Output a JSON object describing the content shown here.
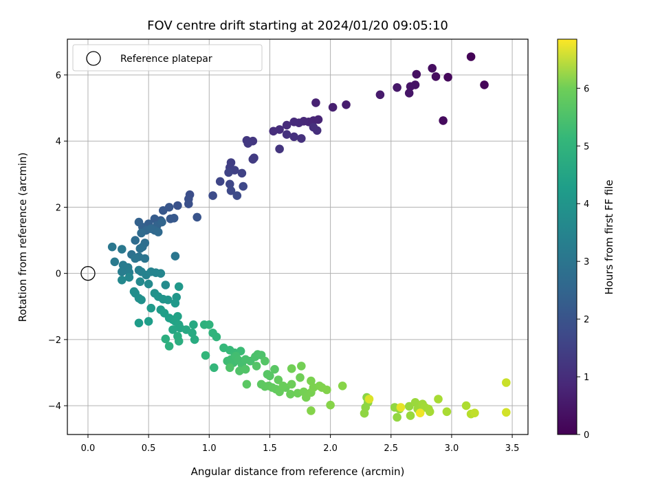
{
  "chart_data": {
    "type": "scatter",
    "title": "FOV centre drift starting at 2024/01/20 09:05:10",
    "xlabel": "Angular distance from reference (arcmin)",
    "ylabel": "Rotation from reference (arcmin)",
    "xlim": [
      -0.17,
      3.63
    ],
    "ylim": [
      -4.87,
      7.08
    ],
    "xticks": [
      0.0,
      0.5,
      1.0,
      1.5,
      2.0,
      2.5,
      3.0,
      3.5
    ],
    "xtick_labels": [
      "0.0",
      "0.5",
      "1.0",
      "1.5",
      "2.0",
      "2.5",
      "3.0",
      "3.5"
    ],
    "yticks": [
      -4,
      -2,
      0,
      2,
      4,
      6
    ],
    "ytick_labels": [
      "−4",
      "−2",
      "0",
      "2",
      "4",
      "6"
    ],
    "grid": true,
    "legend": {
      "position": "top-left",
      "entries": [
        "Reference platepar"
      ]
    },
    "reference_point": {
      "x": 0.0,
      "y": 0.0
    },
    "colorbar": {
      "label": "Hours from first FF file",
      "colormap": "viridis",
      "range": [
        0,
        6.85
      ],
      "ticks": [
        0,
        1,
        2,
        3,
        4,
        5,
        6
      ]
    },
    "points": [
      [
        3.16,
        6.55,
        0.05
      ],
      [
        3.27,
        5.7,
        0.1
      ],
      [
        2.97,
        5.93,
        0.15
      ],
      [
        2.93,
        4.62,
        0.2
      ],
      [
        2.87,
        5.95,
        0.22
      ],
      [
        2.84,
        6.2,
        0.25
      ],
      [
        2.71,
        6.02,
        0.3
      ],
      [
        2.7,
        5.7,
        0.35
      ],
      [
        2.66,
        5.65,
        0.38
      ],
      [
        2.65,
        5.45,
        0.4
      ],
      [
        2.55,
        5.62,
        0.45
      ],
      [
        2.41,
        5.4,
        0.5
      ],
      [
        2.13,
        5.1,
        0.55
      ],
      [
        2.02,
        5.02,
        0.6
      ],
      [
        1.88,
        5.16,
        0.65
      ],
      [
        1.9,
        4.65,
        0.7
      ],
      [
        1.86,
        4.62,
        0.72
      ],
      [
        1.82,
        4.58,
        0.75
      ],
      [
        1.78,
        4.6,
        0.78
      ],
      [
        1.74,
        4.55,
        0.8
      ],
      [
        1.7,
        4.58,
        0.83
      ],
      [
        1.64,
        4.48,
        0.86
      ],
      [
        1.58,
        4.35,
        0.88
      ],
      [
        1.53,
        4.3,
        0.9
      ],
      [
        1.89,
        4.32,
        0.92
      ],
      [
        1.86,
        4.42,
        0.94
      ],
      [
        1.76,
        4.08,
        0.96
      ],
      [
        1.7,
        4.13,
        0.98
      ],
      [
        1.64,
        4.2,
        1.0
      ],
      [
        1.58,
        3.76,
        1.05
      ],
      [
        1.36,
        4.0,
        1.1
      ],
      [
        1.31,
        4.02,
        1.13
      ],
      [
        1.32,
        3.93,
        1.16
      ],
      [
        1.37,
        3.49,
        1.2
      ],
      [
        1.36,
        3.45,
        1.23
      ],
      [
        1.18,
        3.35,
        1.26
      ],
      [
        1.17,
        3.2,
        1.3
      ],
      [
        1.21,
        3.12,
        1.33
      ],
      [
        1.27,
        3.03,
        1.36
      ],
      [
        1.16,
        3.05,
        1.4
      ],
      [
        1.09,
        2.78,
        1.45
      ],
      [
        1.17,
        2.7,
        1.48
      ],
      [
        1.28,
        2.63,
        1.5
      ],
      [
        1.18,
        2.5,
        1.53
      ],
      [
        1.23,
        2.35,
        1.56
      ],
      [
        1.03,
        2.35,
        1.6
      ],
      [
        0.84,
        2.38,
        1.65
      ],
      [
        0.83,
        2.25,
        1.68
      ],
      [
        0.83,
        2.1,
        1.7
      ],
      [
        0.74,
        2.05,
        1.75
      ],
      [
        0.9,
        1.7,
        1.8
      ],
      [
        0.67,
        2.0,
        1.83
      ],
      [
        0.62,
        1.9,
        1.86
      ],
      [
        0.68,
        1.65,
        1.9
      ],
      [
        0.71,
        1.67,
        1.92
      ],
      [
        0.6,
        1.6,
        1.95
      ],
      [
        0.55,
        1.65,
        2.0
      ],
      [
        0.5,
        1.5,
        2.05
      ],
      [
        0.45,
        1.4,
        2.1
      ],
      [
        0.42,
        1.55,
        2.13
      ],
      [
        0.57,
        1.45,
        2.16
      ],
      [
        0.61,
        1.55,
        2.2
      ],
      [
        0.48,
        1.3,
        2.25
      ],
      [
        0.55,
        1.3,
        2.28
      ],
      [
        0.52,
        1.35,
        2.3
      ],
      [
        0.58,
        1.25,
        2.33
      ],
      [
        0.44,
        1.22,
        2.36
      ],
      [
        0.39,
        1.0,
        2.4
      ],
      [
        0.47,
        0.92,
        2.45
      ],
      [
        0.45,
        0.8,
        2.5
      ],
      [
        0.43,
        0.75,
        2.53
      ],
      [
        0.36,
        0.57,
        2.56
      ],
      [
        0.42,
        0.5,
        2.6
      ],
      [
        0.47,
        0.45,
        2.63
      ],
      [
        0.39,
        0.45,
        2.66
      ],
      [
        0.72,
        0.52,
        2.7
      ],
      [
        0.2,
        0.8,
        2.73
      ],
      [
        0.28,
        0.73,
        2.76
      ],
      [
        0.22,
        0.35,
        2.8
      ],
      [
        0.29,
        0.25,
        2.83
      ],
      [
        0.33,
        0.18,
        2.86
      ],
      [
        0.28,
        0.05,
        2.9
      ],
      [
        0.34,
        0.03,
        2.93
      ],
      [
        0.42,
        0.1,
        2.96
      ],
      [
        0.44,
        0.05,
        3.0
      ],
      [
        0.48,
        -0.05,
        3.03
      ],
      [
        0.52,
        0.05,
        3.06
      ],
      [
        0.56,
        0.02,
        3.1
      ],
      [
        0.6,
        0.0,
        3.13
      ],
      [
        0.34,
        -0.12,
        3.16
      ],
      [
        0.28,
        -0.2,
        3.2
      ],
      [
        0.43,
        -0.25,
        3.23
      ],
      [
        0.5,
        -0.32,
        3.26
      ],
      [
        0.64,
        -0.35,
        3.3
      ],
      [
        0.38,
        -0.55,
        3.33
      ],
      [
        0.39,
        -0.6,
        3.36
      ],
      [
        0.42,
        -0.75,
        3.4
      ],
      [
        0.44,
        -0.8,
        3.43
      ],
      [
        0.55,
        -0.6,
        3.46
      ],
      [
        0.58,
        -0.7,
        3.5
      ],
      [
        0.62,
        -0.78,
        3.53
      ],
      [
        0.66,
        -0.8,
        3.56
      ],
      [
        0.73,
        -0.72,
        3.6
      ],
      [
        0.75,
        -0.4,
        3.63
      ],
      [
        0.72,
        -0.9,
        3.66
      ],
      [
        0.52,
        -1.05,
        3.7
      ],
      [
        0.6,
        -1.1,
        3.73
      ],
      [
        0.42,
        -1.5,
        3.76
      ],
      [
        0.5,
        -1.45,
        3.8
      ],
      [
        0.63,
        -1.2,
        3.83
      ],
      [
        0.67,
        -1.35,
        3.86
      ],
      [
        0.7,
        -1.4,
        3.9
      ],
      [
        0.74,
        -1.3,
        3.93
      ],
      [
        0.72,
        -1.45,
        3.96
      ],
      [
        0.75,
        -1.55,
        4.0
      ],
      [
        0.76,
        -1.65,
        4.03
      ],
      [
        0.7,
        -1.7,
        4.06
      ],
      [
        0.81,
        -1.7,
        4.1
      ],
      [
        0.87,
        -1.55,
        4.13
      ],
      [
        0.86,
        -1.8,
        4.16
      ],
      [
        0.88,
        -2.0,
        4.2
      ],
      [
        0.74,
        -1.9,
        4.23
      ],
      [
        0.75,
        -2.05,
        4.26
      ],
      [
        0.64,
        -1.98,
        4.3
      ],
      [
        0.67,
        -2.2,
        4.33
      ],
      [
        0.96,
        -1.55,
        4.36
      ],
      [
        1.0,
        -1.55,
        4.4
      ],
      [
        1.03,
        -1.8,
        4.43
      ],
      [
        1.06,
        -1.92,
        4.46
      ],
      [
        0.97,
        -2.48,
        4.5
      ],
      [
        1.04,
        -2.85,
        4.53
      ],
      [
        1.12,
        -2.25,
        4.56
      ],
      [
        1.17,
        -2.32,
        4.6
      ],
      [
        1.21,
        -2.4,
        4.63
      ],
      [
        1.26,
        -2.35,
        4.66
      ],
      [
        1.15,
        -2.65,
        4.7
      ],
      [
        1.18,
        -2.6,
        4.72
      ],
      [
        1.2,
        -2.7,
        4.74
      ],
      [
        1.22,
        -2.5,
        4.76
      ],
      [
        1.24,
        -2.62,
        4.78
      ],
      [
        1.27,
        -2.75,
        4.8
      ],
      [
        1.3,
        -2.6,
        4.82
      ],
      [
        1.34,
        -2.65,
        4.84
      ],
      [
        1.38,
        -2.52,
        4.86
      ],
      [
        1.4,
        -2.45,
        4.88
      ],
      [
        1.43,
        -2.47,
        4.9
      ],
      [
        1.17,
        -2.85,
        4.92
      ],
      [
        1.25,
        -2.95,
        4.94
      ],
      [
        1.3,
        -2.9,
        4.96
      ],
      [
        1.39,
        -2.8,
        4.98
      ],
      [
        1.46,
        -2.65,
        5.0
      ],
      [
        1.48,
        -3.05,
        5.02
      ],
      [
        1.5,
        -3.1,
        5.04
      ],
      [
        1.54,
        -2.9,
        5.06
      ],
      [
        1.31,
        -3.35,
        5.08
      ],
      [
        1.43,
        -3.35,
        5.1
      ],
      [
        1.46,
        -3.42,
        5.12
      ],
      [
        1.49,
        -3.4,
        5.14
      ],
      [
        1.52,
        -3.45,
        5.16
      ],
      [
        1.55,
        -3.5,
        5.18
      ],
      [
        1.57,
        -3.22,
        5.2
      ],
      [
        1.58,
        -3.58,
        5.22
      ],
      [
        1.63,
        -3.45,
        5.24
      ],
      [
        1.61,
        -3.4,
        5.26
      ],
      [
        1.67,
        -3.65,
        5.28
      ],
      [
        1.68,
        -3.35,
        5.3
      ],
      [
        1.73,
        -3.62,
        5.32
      ],
      [
        1.75,
        -3.15,
        5.34
      ],
      [
        1.68,
        -2.88,
        5.36
      ],
      [
        1.76,
        -2.8,
        5.38
      ],
      [
        1.78,
        -3.58,
        5.4
      ],
      [
        1.8,
        -3.75,
        5.42
      ],
      [
        1.84,
        -3.6,
        5.44
      ],
      [
        1.84,
        -3.25,
        5.46
      ],
      [
        1.86,
        -3.45,
        5.48
      ],
      [
        1.91,
        -3.4,
        5.5
      ],
      [
        1.93,
        -3.45,
        5.52
      ],
      [
        1.97,
        -3.52,
        5.54
      ],
      [
        1.84,
        -4.15,
        5.56
      ],
      [
        2.0,
        -3.98,
        5.58
      ],
      [
        2.1,
        -3.4,
        5.6
      ],
      [
        2.3,
        -3.75,
        5.62
      ],
      [
        2.31,
        -3.9,
        5.64
      ],
      [
        2.29,
        -4.05,
        5.66
      ],
      [
        2.28,
        -4.23,
        5.68
      ],
      [
        2.53,
        -4.05,
        5.7
      ],
      [
        2.55,
        -4.35,
        5.72
      ],
      [
        2.57,
        -4.1,
        5.74
      ],
      [
        2.65,
        -4.02,
        5.76
      ],
      [
        2.66,
        -4.3,
        5.78
      ],
      [
        2.7,
        -3.9,
        5.8
      ],
      [
        2.72,
        -4.1,
        5.82
      ],
      [
        2.74,
        -4.2,
        5.84
      ],
      [
        2.76,
        -3.95,
        5.86
      ],
      [
        2.78,
        -4.05,
        5.88
      ],
      [
        2.81,
        -4.1,
        5.9
      ],
      [
        2.82,
        -4.18,
        5.92
      ],
      [
        2.89,
        -3.8,
        5.94
      ],
      [
        2.96,
        -4.18,
        5.96
      ],
      [
        3.12,
        -4.0,
        6.0
      ],
      [
        3.16,
        -4.25,
        6.1
      ],
      [
        3.19,
        -4.22,
        6.2
      ],
      [
        3.45,
        -3.3,
        6.3
      ],
      [
        3.45,
        -4.2,
        6.4
      ],
      [
        2.32,
        -3.8,
        6.5
      ],
      [
        2.58,
        -4.05,
        6.6
      ],
      [
        2.74,
        -4.22,
        6.7
      ]
    ]
  }
}
